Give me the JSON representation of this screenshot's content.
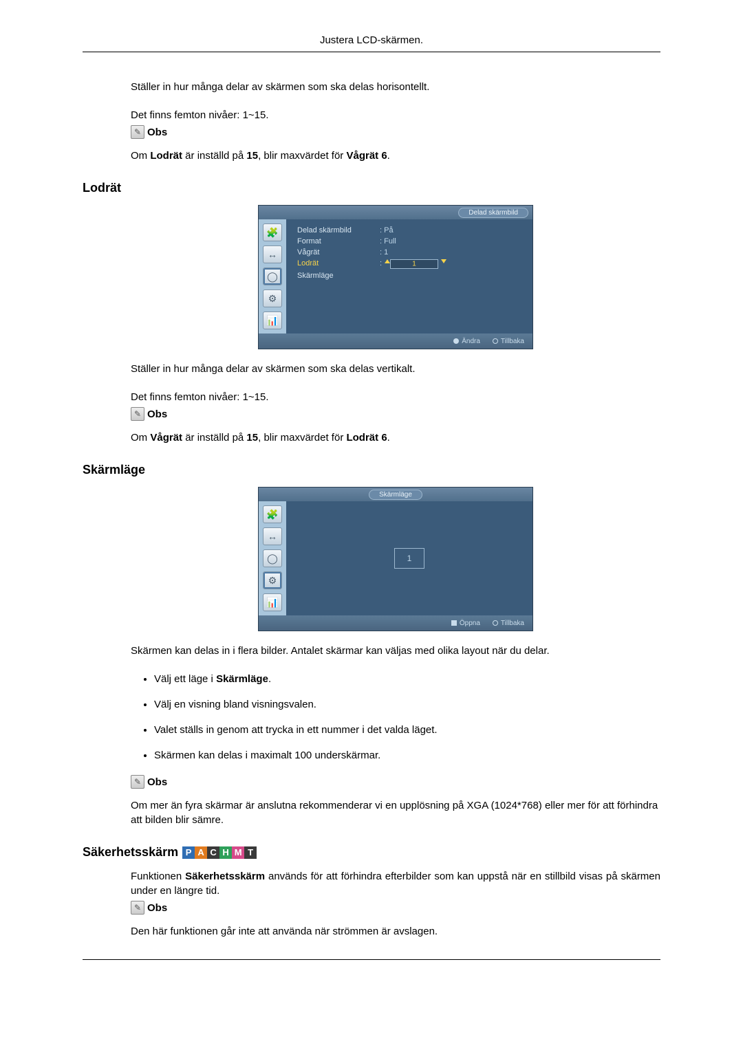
{
  "header": {
    "title": "Justera LCD-skärmen."
  },
  "section_top": {
    "p1": "Ställer in hur många delar av skärmen som ska delas horisontellt.",
    "p2": "Det finns femton nivåer: 1~15.",
    "note_label": "Obs",
    "p3_pre": "Om ",
    "p3_b1": "Lodrät",
    "p3_mid": " är inställd på ",
    "p3_b2": "15",
    "p3_mid2": ", blir maxvärdet för ",
    "p3_b3": "Vågrät 6",
    "p3_end": "."
  },
  "lodrat": {
    "heading": "Lodrät",
    "osd": {
      "title": "Delad skärmbild",
      "rows": [
        {
          "k": "Delad skärmbild",
          "v": ": På"
        },
        {
          "k": "Format",
          "v": ": Full"
        },
        {
          "k": "Vågrät",
          "v": ": 1"
        },
        {
          "k": "Lodrät",
          "v": ":",
          "slider": true,
          "hl": true
        },
        {
          "k": "Skärmläge",
          "v": ""
        }
      ],
      "footer_left": "Ändra",
      "footer_right": "Tillbaka"
    },
    "p1": "Ställer in hur många delar av skärmen som ska delas vertikalt.",
    "p2": "Det finns femton nivåer: 1~15.",
    "note_label": "Obs",
    "p3_pre": "Om ",
    "p3_b1": "Vågrät",
    "p3_mid": " är inställd på ",
    "p3_b2": "15",
    "p3_mid2": ", blir maxvärdet för ",
    "p3_b3": "Lodrät 6",
    "p3_end": "."
  },
  "skarmlage": {
    "heading": "Skärmläge",
    "osd": {
      "title": "Skärmläge",
      "chip": "1",
      "footer_left": "Öppna",
      "footer_right": "Tillbaka"
    },
    "p1": "Skärmen kan delas in i flera bilder. Antalet skärmar kan väljas med olika layout när du delar.",
    "bullets": [
      {
        "pre": "Välj ett läge i ",
        "b": "Skärmläge",
        "post": "."
      },
      {
        "pre": "Välj en visning bland visningsvalen.",
        "b": "",
        "post": ""
      },
      {
        "pre": "Valet ställs in genom att trycka in ett nummer i det valda läget.",
        "b": "",
        "post": ""
      },
      {
        "pre": "Skärmen kan delas i maximalt 100 underskärmar.",
        "b": "",
        "post": ""
      }
    ],
    "note_label": "Obs",
    "p2": "Om mer än fyra skärmar är anslutna rekommenderar vi en upplösning på XGA (1024*768) eller mer för att förhindra att bilden blir sämre."
  },
  "sakerhet": {
    "heading": "Säkerhetsskärm",
    "badges": [
      {
        "t": "P",
        "bg": "#2f6db3"
      },
      {
        "t": "A",
        "bg": "#e07b1f"
      },
      {
        "t": "C",
        "bg": "#3a3a3a"
      },
      {
        "t": "H",
        "bg": "#2fa05a"
      },
      {
        "t": "M",
        "bg": "#d64a8a"
      },
      {
        "t": "T",
        "bg": "#3a3a3a"
      }
    ],
    "p1_pre": "Funktionen ",
    "p1_b": "Säkerhetsskärm",
    "p1_post": " används för att förhindra efterbilder som kan uppstå när en stillbild visas på skärmen under en längre tid.",
    "note_label": "Obs",
    "p2": "Den här funktionen går inte att använda när strömmen är avslagen."
  }
}
